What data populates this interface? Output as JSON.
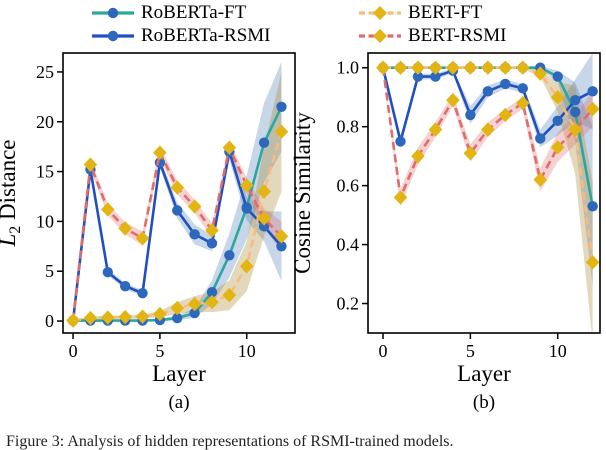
{
  "figure": {
    "caption_clipped": "Figure 3: Analysis of hidden representations of RSMI-trained models.",
    "sublabels": [
      "(a)",
      "(b)"
    ]
  },
  "colors": {
    "teal_line": "#2aa79e",
    "blue_line": "#1f4fc0",
    "blue_marker": "#2d68bd",
    "orange_line": "#f8bb80",
    "red_line": "#e06c6c",
    "gold_marker": "#e2b513",
    "band_blue": "rgba(85,130,185,0.33)",
    "band_tan": "rgba(175,143,60,0.35)",
    "band_pink": "rgba(222,105,105,0.30)",
    "axis": "#000000"
  },
  "legend": {
    "columns": [
      {
        "entries": [
          {
            "label": "RoBERTa-FT",
            "line_color": "#2aa79e",
            "line_style": "solid",
            "marker": "circle",
            "marker_color": "#2d68bd"
          },
          {
            "label": "RoBERTa-RSMI",
            "line_color": "#1f4fc0",
            "line_style": "solid",
            "marker": "circle",
            "marker_color": "#2d68bd"
          }
        ]
      },
      {
        "entries": [
          {
            "label": "BERT-FT",
            "line_color": "#f8bb80",
            "line_style": "dashed",
            "marker": "diamond",
            "marker_color": "#e2b513"
          },
          {
            "label": "BERT-RSMI",
            "line_color": "#e06c6c",
            "line_style": "dashed",
            "marker": "diamond",
            "marker_color": "#e2b513"
          }
        ]
      }
    ]
  },
  "chart_data": [
    {
      "type": "line",
      "sublabel": "(a)",
      "xlabel": "Layer",
      "ylabel": "L2 Distance",
      "ylabel_rich": [
        {
          "t": "L",
          "italic": true
        },
        {
          "t": "2",
          "sub": true
        },
        {
          "t": " Distance"
        }
      ],
      "x": [
        0,
        1,
        2,
        3,
        4,
        5,
        6,
        7,
        8,
        9,
        10,
        11,
        12
      ],
      "xticks": [
        0,
        5,
        10
      ],
      "xtick_labels": [
        "0",
        "5",
        "10"
      ],
      "yticks": [
        0,
        5,
        10,
        15,
        20,
        25
      ],
      "ytick_labels": [
        "0",
        "5",
        "10",
        "15",
        "20",
        "25"
      ],
      "xlim": [
        -0.58,
        12.78
      ],
      "ylim": [
        -1.2,
        26.9
      ],
      "grid": false,
      "series": [
        {
          "name": "RoBERTa-FT",
          "color": "#2aa79e",
          "linestyle": "solid",
          "marker": "circle",
          "marker_color": "#2d68bd",
          "band_color": "rgba(85,130,185,0.33)",
          "values": [
            0.05,
            0.05,
            0.05,
            0.05,
            0.05,
            0.1,
            0.3,
            0.8,
            2.9,
            6.6,
            11.4,
            17.9,
            21.5
          ],
          "band": [
            0.1,
            0.1,
            0.1,
            0.1,
            0.1,
            0.15,
            0.2,
            0.5,
            1.2,
            2.2,
            3.2,
            4.0,
            4.5
          ]
        },
        {
          "name": "RoBERTa-RSMI",
          "color": "#1f4fc0",
          "linestyle": "solid",
          "marker": "circle",
          "marker_color": "#2d68bd",
          "band_color": "rgba(85,130,185,0.33)",
          "values": [
            0.05,
            15.2,
            4.9,
            3.5,
            2.8,
            15.9,
            11.1,
            8.7,
            7.8,
            17.0,
            11.3,
            9.5,
            7.5
          ],
          "band": [
            0.1,
            0.4,
            0.3,
            0.3,
            0.3,
            0.5,
            0.8,
            1.0,
            0.8,
            0.8,
            1.2,
            1.5,
            3.5
          ]
        },
        {
          "name": "BERT-FT",
          "color": "#f8bb80",
          "linestyle": "dashed",
          "marker": "diamond",
          "marker_color": "#e2b513",
          "band_color": "rgba(175,143,60,0.35)",
          "values": [
            0.05,
            0.3,
            0.35,
            0.4,
            0.45,
            0.7,
            1.3,
            1.7,
            1.9,
            2.6,
            5.5,
            13.0,
            19.0
          ],
          "band": [
            0.1,
            0.15,
            0.15,
            0.2,
            0.2,
            0.3,
            0.6,
            0.8,
            1.0,
            1.5,
            2.5,
            4.5,
            6.0
          ]
        },
        {
          "name": "BERT-RSMI",
          "color": "#e06c6c",
          "linestyle": "dashed",
          "marker": "diamond",
          "marker_color": "#e2b513",
          "band_color": "rgba(222,105,105,0.30)",
          "values": [
            0.05,
            15.7,
            11.2,
            9.3,
            8.3,
            16.9,
            13.4,
            11.5,
            9.1,
            17.4,
            13.6,
            10.3,
            8.5
          ],
          "band": [
            0.1,
            0.5,
            0.6,
            0.6,
            0.7,
            0.6,
            0.7,
            0.7,
            0.7,
            0.6,
            0.8,
            1.0,
            1.5
          ]
        }
      ]
    },
    {
      "type": "line",
      "sublabel": "(b)",
      "xlabel": "Layer",
      "ylabel": "Cosine Similarity",
      "x": [
        0,
        1,
        2,
        3,
        4,
        5,
        6,
        7,
        8,
        9,
        10,
        11,
        12
      ],
      "xticks": [
        0,
        5,
        10
      ],
      "xtick_labels": [
        "0",
        "5",
        "10"
      ],
      "yticks": [
        0.2,
        0.4,
        0.6,
        0.8,
        1.0
      ],
      "ytick_labels": [
        "0.2",
        "0.4",
        "0.6",
        "0.8",
        "1.0"
      ],
      "xlim": [
        -0.86,
        12.42
      ],
      "ylim": [
        0.1,
        1.05
      ],
      "grid": false,
      "series": [
        {
          "name": "RoBERTa-FT",
          "color": "#2aa79e",
          "linestyle": "solid",
          "marker": "circle",
          "marker_color": "#2d68bd",
          "band_color": "rgba(85,130,185,0.33)",
          "values": [
            1.0,
            1.0,
            1.0,
            1.0,
            1.0,
            1.0,
            1.0,
            1.0,
            1.0,
            1.0,
            0.97,
            0.85,
            0.53
          ],
          "band": [
            0.004,
            0.004,
            0.004,
            0.004,
            0.004,
            0.004,
            0.004,
            0.004,
            0.004,
            0.006,
            0.02,
            0.1,
            0.27
          ]
        },
        {
          "name": "RoBERTa-RSMI",
          "color": "#1f4fc0",
          "linestyle": "solid",
          "marker": "circle",
          "marker_color": "#2d68bd",
          "band_color": "rgba(85,130,185,0.33)",
          "values": [
            1.0,
            0.75,
            0.97,
            0.97,
            0.99,
            0.84,
            0.92,
            0.945,
            0.93,
            0.76,
            0.82,
            0.89,
            0.92
          ],
          "band": [
            0.004,
            0.02,
            0.01,
            0.01,
            0.008,
            0.03,
            0.02,
            0.015,
            0.015,
            0.03,
            0.05,
            0.07,
            0.13
          ]
        },
        {
          "name": "BERT-FT",
          "color": "#f8bb80",
          "linestyle": "dashed",
          "marker": "diamond",
          "marker_color": "#e2b513",
          "band_color": "rgba(175,143,60,0.35)",
          "values": [
            1.0,
            1.0,
            1.0,
            1.0,
            1.0,
            1.0,
            1.0,
            1.0,
            1.0,
            0.98,
            0.9,
            0.79,
            0.34
          ],
          "band": [
            0.004,
            0.004,
            0.004,
            0.004,
            0.004,
            0.004,
            0.004,
            0.004,
            0.004,
            0.01,
            0.05,
            0.15,
            0.27
          ]
        },
        {
          "name": "BERT-RSMI",
          "color": "#e06c6c",
          "linestyle": "dashed",
          "marker": "diamond",
          "marker_color": "#e2b513",
          "band_color": "rgba(222,105,105,0.30)",
          "values": [
            1.0,
            0.56,
            0.7,
            0.79,
            0.89,
            0.71,
            0.79,
            0.84,
            0.88,
            0.62,
            0.73,
            0.79,
            0.86
          ],
          "band": [
            0.004,
            0.03,
            0.03,
            0.025,
            0.02,
            0.03,
            0.025,
            0.02,
            0.02,
            0.04,
            0.05,
            0.05,
            0.06
          ]
        }
      ]
    }
  ]
}
